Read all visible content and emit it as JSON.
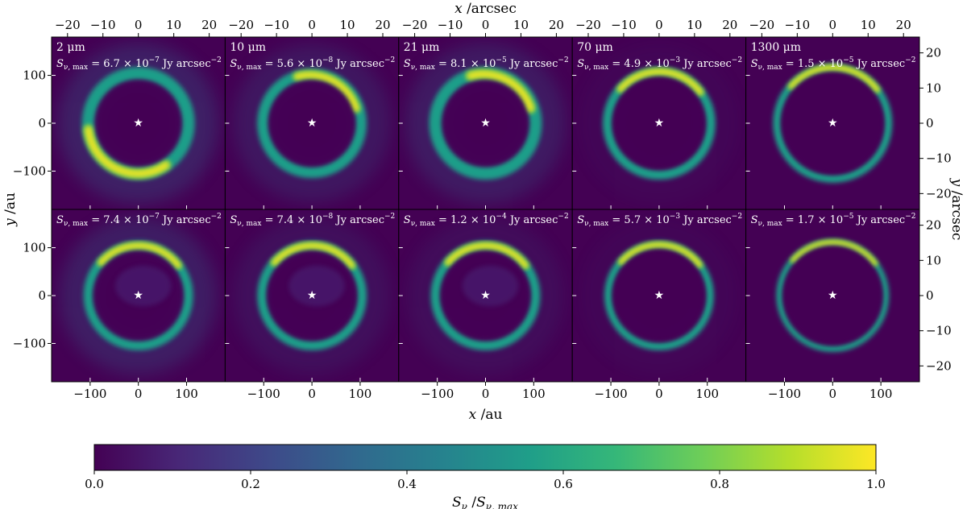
{
  "chart_data": {
    "type": "heatmap",
    "description_rows": [
      "top",
      "bottom"
    ],
    "colormap": "viridis",
    "colormap_stops": [
      "#440154",
      "#482878",
      "#3e4989",
      "#31688e",
      "#26828e",
      "#1f9e89",
      "#35b779",
      "#6ece58",
      "#b5de2b",
      "#fde725"
    ],
    "star_marker": "★",
    "axes": {
      "x_bottom_label": "x",
      "x_bottom_unit": " /au",
      "y_left_label": "y",
      "y_left_unit": " /au",
      "x_top_label": "x",
      "x_top_unit": " /arcsec",
      "y_right_label": "y",
      "y_right_unit": " /arcsec",
      "au_range": [
        -180,
        180
      ],
      "arcsec_range": [
        -24.5,
        24.5
      ],
      "au_ticks": [
        "−100",
        "0",
        "100"
      ],
      "au_tick_values": [
        -100,
        0,
        100
      ],
      "arcsec_ticks": [
        "−20",
        "−10",
        "0",
        "10",
        "20"
      ],
      "arcsec_tick_values": [
        -20,
        -10,
        0,
        10,
        20
      ]
    },
    "panels": [
      {
        "row": 0,
        "col": 0,
        "wavelength": "2 μm",
        "smax_mantissa": "6.7",
        "smax_exponent": "−7"
      },
      {
        "row": 0,
        "col": 1,
        "wavelength": "10 μm",
        "smax_mantissa": "5.6",
        "smax_exponent": "−8"
      },
      {
        "row": 0,
        "col": 2,
        "wavelength": "21 μm",
        "smax_mantissa": "8.1",
        "smax_exponent": "−5"
      },
      {
        "row": 0,
        "col": 3,
        "wavelength": "70 μm",
        "smax_mantissa": "4.9",
        "smax_exponent": "−3"
      },
      {
        "row": 0,
        "col": 4,
        "wavelength": "1300 μm",
        "smax_mantissa": "1.5",
        "smax_exponent": "−5"
      },
      {
        "row": 1,
        "col": 0,
        "wavelength": "",
        "smax_mantissa": "7.4",
        "smax_exponent": "−7"
      },
      {
        "row": 1,
        "col": 1,
        "wavelength": "",
        "smax_mantissa": "7.4",
        "smax_exponent": "−8"
      },
      {
        "row": 1,
        "col": 2,
        "wavelength": "",
        "smax_mantissa": "1.2",
        "smax_exponent": "−4"
      },
      {
        "row": 1,
        "col": 3,
        "wavelength": "",
        "smax_mantissa": "5.7",
        "smax_exponent": "−3"
      },
      {
        "row": 1,
        "col": 4,
        "wavelength": "",
        "smax_mantissa": "1.7",
        "smax_exponent": "−5"
      }
    ],
    "smax_symbol": "S",
    "smax_subscript": "ν, max",
    "smax_unit": "Jy arcsec",
    "smax_unit_exponent": "−2",
    "colorbar": {
      "range": [
        0.0,
        1.0
      ],
      "ticks": [
        "0.0",
        "0.2",
        "0.4",
        "0.6",
        "0.8",
        "1.0"
      ],
      "tick_values": [
        0.0,
        0.2,
        0.4,
        0.6,
        0.8,
        1.0
      ],
      "label_symbol": "S",
      "label_sub": "ν",
      "label_sep": " /",
      "label_symbol2": "S",
      "label_sub2": "ν, max"
    }
  }
}
